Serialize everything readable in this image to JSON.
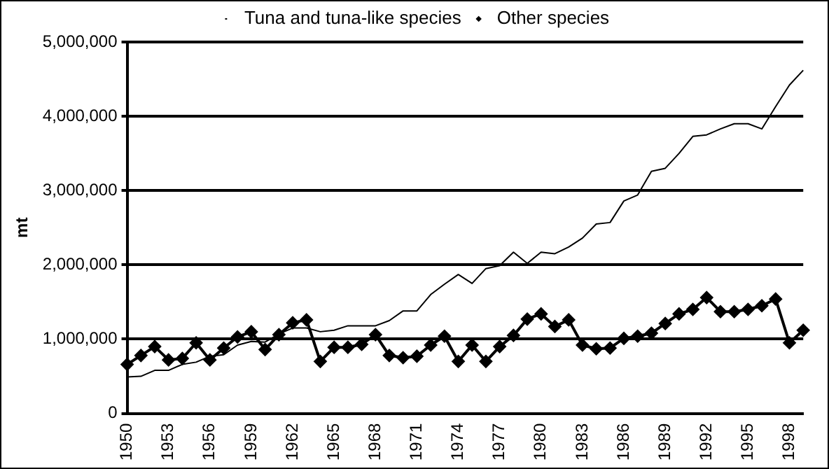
{
  "chart_data": {
    "type": "line",
    "ylabel": "mt",
    "categories": [
      "1950",
      null,
      null,
      "1953",
      null,
      null,
      "1956",
      null,
      null,
      "1959",
      null,
      null,
      "1962",
      null,
      null,
      "1965",
      null,
      null,
      "1968",
      null,
      null,
      "1971",
      null,
      null,
      "1974",
      null,
      null,
      "1977",
      null,
      null,
      "1980",
      null,
      null,
      "1983",
      null,
      null,
      "1986",
      null,
      null,
      "1989",
      null,
      null,
      "1992",
      null,
      null,
      "1995",
      null,
      null,
      "1998",
      null
    ],
    "series": [
      {
        "name": "Tuna and tuna-like species",
        "color": "#000000",
        "marker": "none",
        "values": [
          490000,
          500000,
          580000,
          580000,
          660000,
          690000,
          770000,
          790000,
          920000,
          970000,
          960000,
          1070000,
          1150000,
          1150000,
          1100000,
          1120000,
          1180000,
          1180000,
          1180000,
          1250000,
          1380000,
          1380000,
          1600000,
          1740000,
          1870000,
          1750000,
          1950000,
          1990000,
          2170000,
          2020000,
          2170000,
          2150000,
          2240000,
          2360000,
          2550000,
          2570000,
          2860000,
          2940000,
          3260000,
          3300000,
          3500000,
          3730000,
          3750000,
          3830000,
          3900000,
          3900000,
          3830000,
          4130000,
          4420000,
          4620000
        ]
      },
      {
        "name": "Other species",
        "color": "#000000",
        "marker": "diamond",
        "values": [
          660000,
          780000,
          900000,
          720000,
          740000,
          950000,
          720000,
          880000,
          1030000,
          1100000,
          860000,
          1060000,
          1220000,
          1260000,
          700000,
          890000,
          890000,
          930000,
          1060000,
          780000,
          750000,
          770000,
          920000,
          1040000,
          700000,
          920000,
          700000,
          900000,
          1050000,
          1270000,
          1340000,
          1170000,
          1260000,
          920000,
          870000,
          880000,
          1010000,
          1040000,
          1080000,
          1210000,
          1340000,
          1400000,
          1560000,
          1370000,
          1370000,
          1400000,
          1450000,
          1540000,
          950000,
          1120000
        ]
      }
    ],
    "ylim": [
      0,
      5000000
    ],
    "yticks": [
      {
        "value": 0,
        "label": "0"
      },
      {
        "value": 1000000,
        "label": "1,000,000"
      },
      {
        "value": 2000000,
        "label": "2,000,000"
      },
      {
        "value": 3000000,
        "label": "3,000,000"
      },
      {
        "value": 4000000,
        "label": "4,000,000"
      },
      {
        "value": 5000000,
        "label": "5,000,000"
      }
    ],
    "grid": "y",
    "legend": "top"
  }
}
